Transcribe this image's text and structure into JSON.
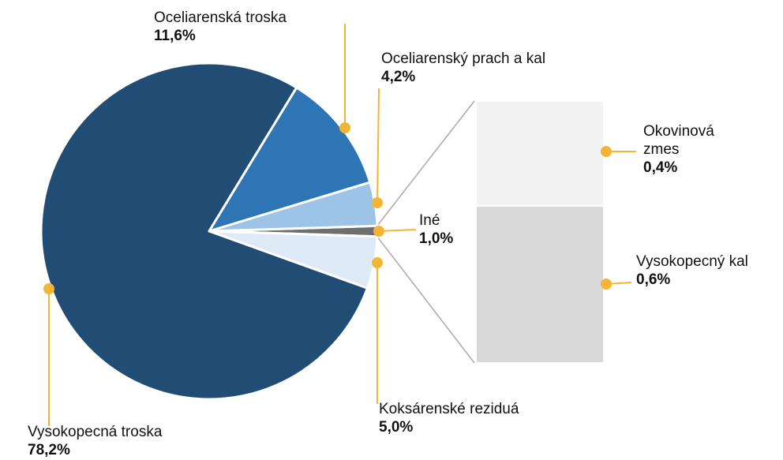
{
  "chart_data": {
    "type": "pie",
    "categories": [
      "Iné",
      "Koksárenské reziduá",
      "Vysokopecná troska",
      "Oceliarenská troska",
      "Oceliarenský prach a kal"
    ],
    "values": [
      1.0,
      5.0,
      78.2,
      11.6,
      4.2
    ],
    "value_labels": [
      "1,0%",
      "5,0%",
      "78,2%",
      "11,6%",
      "4,2%"
    ],
    "colors": [
      "#6d6e70",
      "#deeaf6",
      "#214d74",
      "#2e75b6",
      "#9dc3e6"
    ],
    "breakdown": {
      "categories": [
        "Okovinová zmes",
        "Vysokopecný kal"
      ],
      "values": [
        0.4,
        0.6
      ],
      "value_labels": [
        "0,4%",
        "0,6%"
      ],
      "colors": [
        "#f2f2f2",
        "#d9d9d9"
      ]
    }
  }
}
